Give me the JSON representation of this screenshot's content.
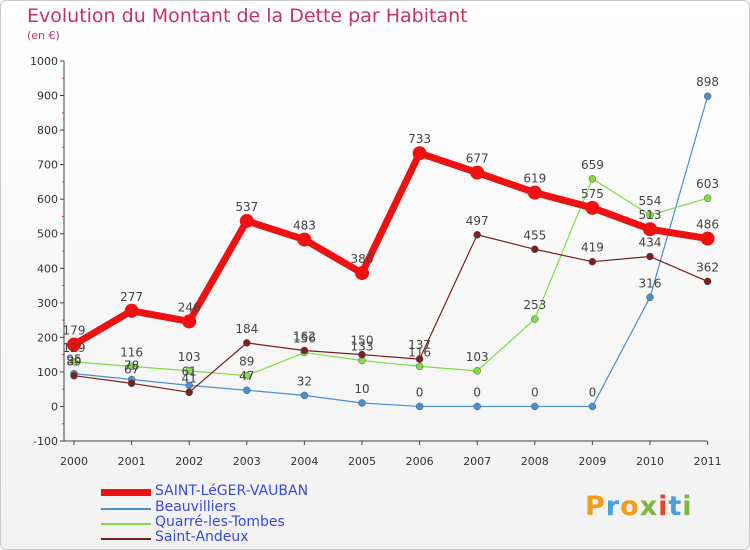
{
  "header": {
    "title": "Evolution du Montant de la Dette par Habitant",
    "subtitle": "(en €)"
  },
  "logo": {
    "letters": [
      "P",
      "r",
      "o",
      "x",
      "i",
      "t",
      "i"
    ],
    "colors": [
      "#f59b1e",
      "#4aa0dc",
      "#f59b1e",
      "#78b83c",
      "#e8452c",
      "#4aa0dc",
      "#78b83c"
    ]
  },
  "chart_data": {
    "type": "line",
    "x": [
      "2000",
      "2001",
      "2002",
      "2003",
      "2004",
      "2005",
      "2006",
      "2007",
      "2008",
      "2009",
      "2010",
      "2011"
    ],
    "ylim": [
      -100,
      1000
    ],
    "yticks": [
      -100,
      0,
      100,
      200,
      300,
      400,
      500,
      600,
      700,
      800,
      900,
      1000
    ],
    "grid": false,
    "legend_position": "bottom-left",
    "series": [
      {
        "name": "SAINT-LéGER-VAUBAN",
        "color": "#ee1111",
        "values": [
          179,
          277,
          246,
          537,
          483,
          386,
          733,
          677,
          619,
          575,
          513,
          486
        ],
        "labels": [
          "179",
          "277",
          "246",
          "537",
          "483",
          "386",
          "733",
          "677",
          "619",
          "575",
          "513",
          "486"
        ]
      },
      {
        "name": "Beauvilliers",
        "color": "#4a8fd0",
        "values": [
          95,
          78,
          61,
          47,
          32,
          10,
          0,
          0,
          0,
          0,
          316,
          898
        ],
        "labels": [
          "95",
          "78",
          "61",
          "47",
          "32",
          "10",
          "0",
          "0",
          "0",
          "0",
          "316",
          "898"
        ]
      },
      {
        "name": "Quarré-les-Tombes",
        "color": "#80dd44",
        "values": [
          129,
          116,
          103,
          89,
          156,
          133,
          116,
          103,
          253,
          659,
          554,
          603
        ],
        "labels": [
          "129",
          "116",
          "103",
          "89",
          "156",
          "133",
          "116",
          "103",
          "253",
          "659",
          "554",
          "603"
        ]
      },
      {
        "name": "Saint-Andeux",
        "color": "#7a1f1f",
        "values": [
          89,
          67,
          41,
          184,
          162,
          150,
          137,
          497,
          455,
          419,
          434,
          362
        ],
        "labels": [
          "89",
          "67",
          "41",
          "184",
          "162",
          "150",
          "137",
          "497",
          "455",
          "419",
          "434",
          "362"
        ]
      }
    ]
  }
}
